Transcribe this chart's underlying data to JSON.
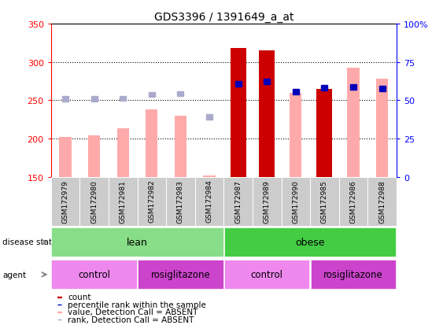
{
  "title": "GDS3396 / 1391649_a_at",
  "samples": [
    "GSM172979",
    "GSM172980",
    "GSM172981",
    "GSM172982",
    "GSM172983",
    "GSM172984",
    "GSM172987",
    "GSM172989",
    "GSM172990",
    "GSM172985",
    "GSM172986",
    "GSM172988"
  ],
  "count_values": [
    null,
    null,
    null,
    null,
    null,
    null,
    318,
    315,
    null,
    265,
    null,
    null
  ],
  "count_absent": [
    202,
    204,
    213,
    238,
    230,
    152,
    null,
    null,
    260,
    null,
    292,
    278
  ],
  "rank_values": [
    248,
    248,
    249,
    254,
    255,
    225,
    268,
    271,
    258,
    263,
    264,
    262
  ],
  "percentile_rank": [
    null,
    null,
    null,
    null,
    null,
    null,
    67,
    69,
    63,
    65,
    64,
    63
  ],
  "ylim": [
    150,
    350
  ],
  "y2lim": [
    0,
    100
  ],
  "yticks": [
    150,
    200,
    250,
    300,
    350
  ],
  "y2ticks": [
    0,
    25,
    50,
    75,
    100
  ],
  "y2ticklabels": [
    "0",
    "25",
    "50",
    "75",
    "100%"
  ],
  "bar_width": 0.55,
  "color_count": "#cc0000",
  "color_count_absent": "#ffaaaa",
  "color_rank": "#0000bb",
  "color_rank_absent": "#aaaacc",
  "color_lean": "#88dd88",
  "color_obese": "#44cc44",
  "color_control": "#ee88ee",
  "color_rosiglitazone": "#cc44cc",
  "color_gray_bg": "#cccccc",
  "baseline": 150,
  "grid_lines": [
    200,
    250,
    300
  ]
}
